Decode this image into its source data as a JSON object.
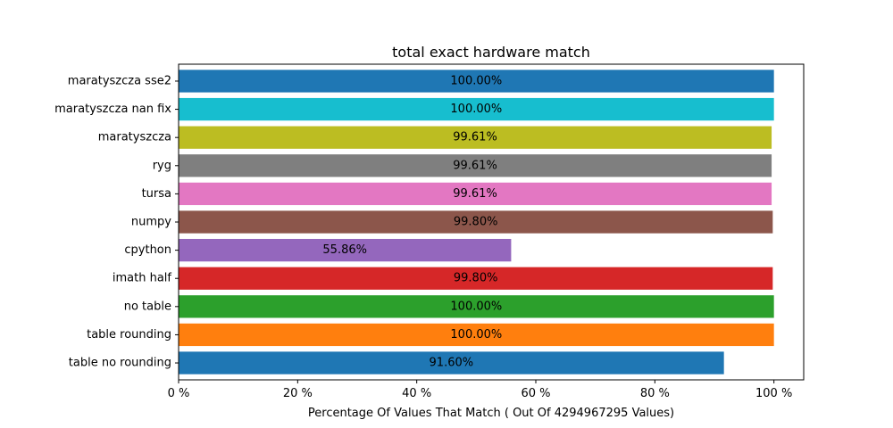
{
  "chart_data": {
    "type": "bar",
    "orientation": "horizontal",
    "title": "total exact hardware match",
    "xlabel": "Percentage Of Values That Match ( Out Of 4294967295 Values)",
    "ylabel": "",
    "xlim": [
      0,
      105
    ],
    "xticks": [
      0,
      20,
      40,
      60,
      80,
      100
    ],
    "xtick_labels": [
      "0 %",
      "20 %",
      "40 %",
      "60 %",
      "80 %",
      "100 %"
    ],
    "grid": false,
    "bars": [
      {
        "label": "maratyszcza sse2",
        "value": 100.0,
        "value_label": "100.00%",
        "color": "#1f77b4"
      },
      {
        "label": "maratyszcza nan fix",
        "value": 100.0,
        "value_label": "100.00%",
        "color": "#17becf"
      },
      {
        "label": "maratyszcza",
        "value": 99.61,
        "value_label": "99.61%",
        "color": "#bcbd22"
      },
      {
        "label": "ryg",
        "value": 99.61,
        "value_label": "99.61%",
        "color": "#7f7f7f"
      },
      {
        "label": "tursa",
        "value": 99.61,
        "value_label": "99.61%",
        "color": "#e377c2"
      },
      {
        "label": "numpy",
        "value": 99.8,
        "value_label": "99.80%",
        "color": "#8c564b"
      },
      {
        "label": "cpython",
        "value": 55.86,
        "value_label": "55.86%",
        "color": "#9467bd"
      },
      {
        "label": "imath half",
        "value": 99.8,
        "value_label": "99.80%",
        "color": "#d62728"
      },
      {
        "label": "no table",
        "value": 100.0,
        "value_label": "100.00%",
        "color": "#2ca02c"
      },
      {
        "label": "table rounding",
        "value": 100.0,
        "value_label": "100.00%",
        "color": "#ff7f0e"
      },
      {
        "label": "table no rounding",
        "value": 91.6,
        "value_label": "91.60%",
        "color": "#1f77b4"
      }
    ]
  }
}
